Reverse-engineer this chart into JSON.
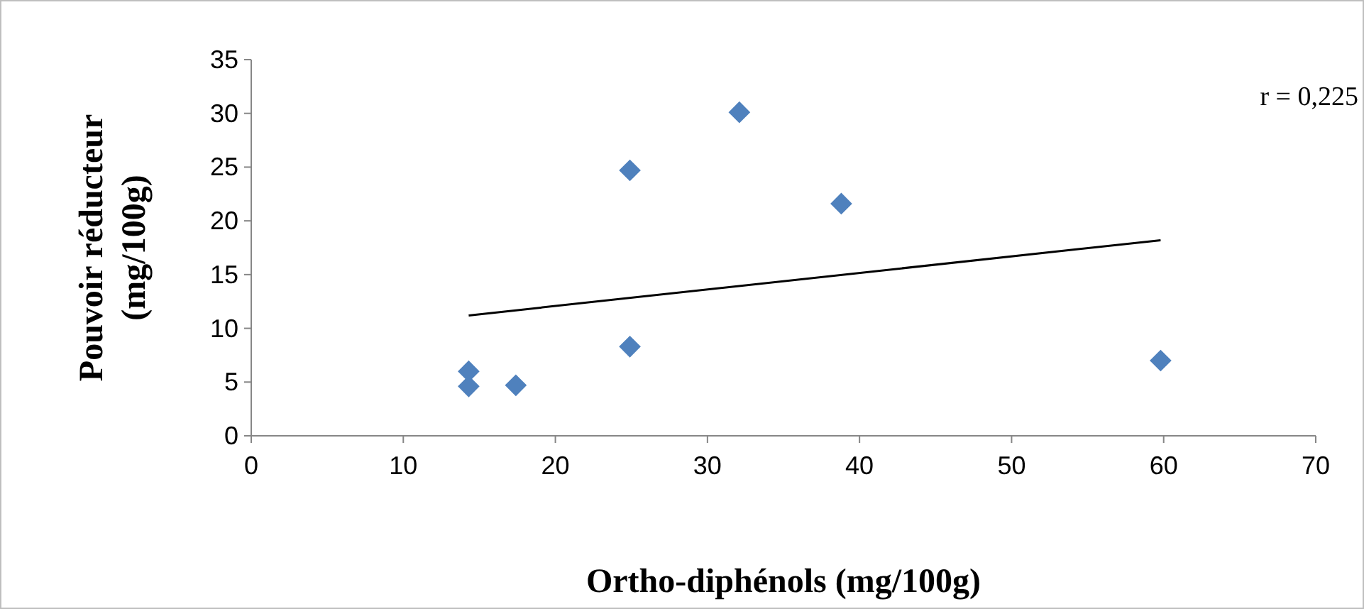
{
  "chart_data": {
    "type": "scatter",
    "xlabel": "Ortho-diphénols (mg/100g)",
    "ylabel": "Pouvoir réducteur (mg/100g)",
    "annotations": [
      "r = 0,225"
    ],
    "xlim": [
      0,
      70
    ],
    "xticks": [
      0,
      10,
      20,
      30,
      40,
      50,
      60,
      70
    ],
    "ylim": [
      0,
      35
    ],
    "yticks": [
      0,
      5,
      10,
      15,
      20,
      25,
      30,
      35
    ],
    "grid": false,
    "marker": "diamond",
    "series": [
      {
        "color": "#4f81bd",
        "x": [
          14.3,
          14.3,
          17.4,
          24.9,
          24.9,
          32.1,
          38.8,
          59.8
        ],
        "values": [
          6.0,
          4.6,
          4.7,
          8.3,
          24.7,
          30.1,
          21.6,
          7.0
        ]
      },
      {
        "type": "line",
        "color": "#000000",
        "marker": "none",
        "line_style": "solid",
        "x": [
          14.3,
          59.8
        ],
        "values": [
          11.2,
          18.2
        ]
      }
    ]
  }
}
